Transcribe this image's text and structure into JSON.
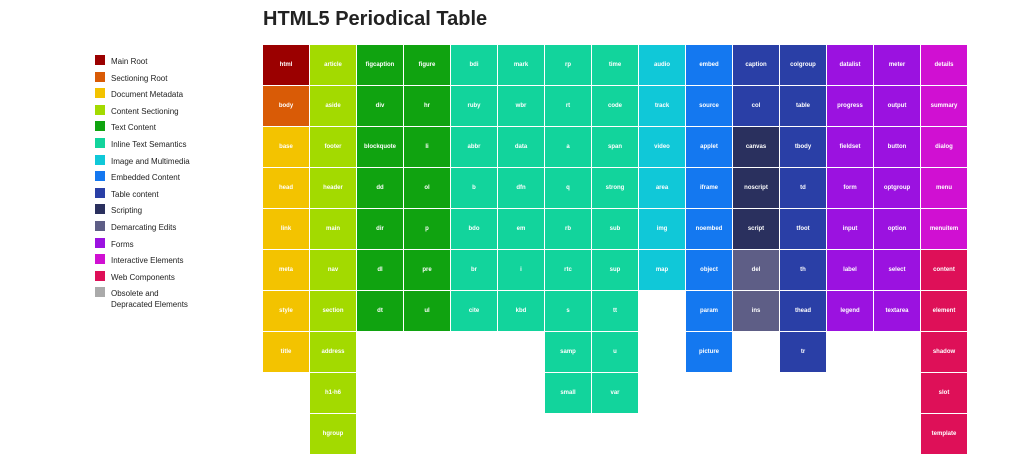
{
  "title": "HTML5 Periodical Table",
  "legend": [
    {
      "label": "Main Root",
      "color": "#9b0000"
    },
    {
      "label": "Sectioning Root",
      "color": "#d95b06"
    },
    {
      "label": "Document Metadata",
      "color": "#f3c300"
    },
    {
      "label": "Content Sectioning",
      "color": "#a3da00"
    },
    {
      "label": "Text Content",
      "color": "#10a310"
    },
    {
      "label": "Inline Text Semantics",
      "color": "#12d49c"
    },
    {
      "label": "Image and Multimedia",
      "color": "#10c8d8"
    },
    {
      "label": "Embedded Content",
      "color": "#1478f0"
    },
    {
      "label": "Table content",
      "color": "#2a3fa6"
    },
    {
      "label": "Scripting",
      "color": "#2a305e"
    },
    {
      "label": "Demarcating Edits",
      "color": "#5e5e86"
    },
    {
      "label": "Forms",
      "color": "#9b12e0"
    },
    {
      "label": "Interactive Elements",
      "color": "#d010d2"
    },
    {
      "label": "Web Components",
      "color": "#de1058"
    },
    {
      "label": "Obsolete and Depracated Elements",
      "color": "#aaaaaa"
    }
  ],
  "columns": [
    [
      {
        "tag": "html",
        "color": "#9b0000"
      },
      {
        "tag": "body",
        "color": "#d95b06"
      },
      {
        "tag": "base",
        "color": "#f3c300"
      },
      {
        "tag": "head",
        "color": "#f3c300"
      },
      {
        "tag": "link",
        "color": "#f3c300"
      },
      {
        "tag": "meta",
        "color": "#f3c300"
      },
      {
        "tag": "style",
        "color": "#f3c300"
      },
      {
        "tag": "title",
        "color": "#f3c300"
      }
    ],
    [
      {
        "tag": "article",
        "color": "#a3da00"
      },
      {
        "tag": "aside",
        "color": "#a3da00"
      },
      {
        "tag": "footer",
        "color": "#a3da00"
      },
      {
        "tag": "header",
        "color": "#a3da00"
      },
      {
        "tag": "main",
        "color": "#a3da00"
      },
      {
        "tag": "nav",
        "color": "#a3da00"
      },
      {
        "tag": "section",
        "color": "#a3da00"
      },
      {
        "tag": "address",
        "color": "#a3da00"
      },
      {
        "tag": "h1-h6",
        "color": "#a3da00"
      },
      {
        "tag": "hgroup",
        "color": "#a3da00"
      }
    ],
    [
      {
        "tag": "figcaption",
        "color": "#10a310"
      },
      {
        "tag": "div",
        "color": "#10a310"
      },
      {
        "tag": "blockquote",
        "color": "#10a310"
      },
      {
        "tag": "dd",
        "color": "#10a310"
      },
      {
        "tag": "dir",
        "color": "#10a310"
      },
      {
        "tag": "dl",
        "color": "#10a310"
      },
      {
        "tag": "dt",
        "color": "#10a310"
      }
    ],
    [
      {
        "tag": "figure",
        "color": "#10a310"
      },
      {
        "tag": "hr",
        "color": "#10a310"
      },
      {
        "tag": "li",
        "color": "#10a310"
      },
      {
        "tag": "ol",
        "color": "#10a310"
      },
      {
        "tag": "p",
        "color": "#10a310"
      },
      {
        "tag": "pre",
        "color": "#10a310"
      },
      {
        "tag": "ul",
        "color": "#10a310"
      }
    ],
    [
      {
        "tag": "bdi",
        "color": "#12d49c"
      },
      {
        "tag": "ruby",
        "color": "#12d49c"
      },
      {
        "tag": "abbr",
        "color": "#12d49c"
      },
      {
        "tag": "b",
        "color": "#12d49c"
      },
      {
        "tag": "bdo",
        "color": "#12d49c"
      },
      {
        "tag": "br",
        "color": "#12d49c"
      },
      {
        "tag": "cite",
        "color": "#12d49c"
      }
    ],
    [
      {
        "tag": "mark",
        "color": "#12d49c"
      },
      {
        "tag": "wbr",
        "color": "#12d49c"
      },
      {
        "tag": "data",
        "color": "#12d49c"
      },
      {
        "tag": "dfn",
        "color": "#12d49c"
      },
      {
        "tag": "em",
        "color": "#12d49c"
      },
      {
        "tag": "i",
        "color": "#12d49c"
      },
      {
        "tag": "kbd",
        "color": "#12d49c"
      }
    ],
    [
      {
        "tag": "rp",
        "color": "#12d49c"
      },
      {
        "tag": "rt",
        "color": "#12d49c"
      },
      {
        "tag": "a",
        "color": "#12d49c"
      },
      {
        "tag": "q",
        "color": "#12d49c"
      },
      {
        "tag": "rb",
        "color": "#12d49c"
      },
      {
        "tag": "rtc",
        "color": "#12d49c"
      },
      {
        "tag": "s",
        "color": "#12d49c"
      },
      {
        "tag": "samp",
        "color": "#12d49c"
      },
      {
        "tag": "small",
        "color": "#12d49c"
      }
    ],
    [
      {
        "tag": "time",
        "color": "#12d49c"
      },
      {
        "tag": "code",
        "color": "#12d49c"
      },
      {
        "tag": "span",
        "color": "#12d49c"
      },
      {
        "tag": "strong",
        "color": "#12d49c"
      },
      {
        "tag": "sub",
        "color": "#12d49c"
      },
      {
        "tag": "sup",
        "color": "#12d49c"
      },
      {
        "tag": "tt",
        "color": "#12d49c"
      },
      {
        "tag": "u",
        "color": "#12d49c"
      },
      {
        "tag": "var",
        "color": "#12d49c"
      }
    ],
    [
      {
        "tag": "audio",
        "color": "#10c8d8"
      },
      {
        "tag": "track",
        "color": "#10c8d8"
      },
      {
        "tag": "video",
        "color": "#10c8d8"
      },
      {
        "tag": "area",
        "color": "#10c8d8"
      },
      {
        "tag": "img",
        "color": "#10c8d8"
      },
      {
        "tag": "map",
        "color": "#10c8d8"
      }
    ],
    [
      {
        "tag": "embed",
        "color": "#1478f0"
      },
      {
        "tag": "source",
        "color": "#1478f0"
      },
      {
        "tag": "applet",
        "color": "#1478f0"
      },
      {
        "tag": "iframe",
        "color": "#1478f0"
      },
      {
        "tag": "noembed",
        "color": "#1478f0"
      },
      {
        "tag": "object",
        "color": "#1478f0"
      },
      {
        "tag": "param",
        "color": "#1478f0"
      },
      {
        "tag": "picture",
        "color": "#1478f0"
      }
    ],
    [
      {
        "tag": "caption",
        "color": "#2a3fa6"
      },
      {
        "tag": "col",
        "color": "#2a3fa6"
      },
      {
        "tag": "canvas",
        "color": "#2a305e"
      },
      {
        "tag": "noscript",
        "color": "#2a305e"
      },
      {
        "tag": "script",
        "color": "#2a305e"
      },
      {
        "tag": "del",
        "color": "#5e5e86"
      },
      {
        "tag": "ins",
        "color": "#5e5e86"
      }
    ],
    [
      {
        "tag": "colgroup",
        "color": "#2a3fa6"
      },
      {
        "tag": "table",
        "color": "#2a3fa6"
      },
      {
        "tag": "tbody",
        "color": "#2a3fa6"
      },
      {
        "tag": "td",
        "color": "#2a3fa6"
      },
      {
        "tag": "tfoot",
        "color": "#2a3fa6"
      },
      {
        "tag": "th",
        "color": "#2a3fa6"
      },
      {
        "tag": "thead",
        "color": "#2a3fa6"
      },
      {
        "tag": "tr",
        "color": "#2a3fa6"
      }
    ],
    [
      {
        "tag": "datalist",
        "color": "#9b12e0"
      },
      {
        "tag": "progress",
        "color": "#9b12e0"
      },
      {
        "tag": "fieldset",
        "color": "#9b12e0"
      },
      {
        "tag": "form",
        "color": "#9b12e0"
      },
      {
        "tag": "input",
        "color": "#9b12e0"
      },
      {
        "tag": "label",
        "color": "#9b12e0"
      },
      {
        "tag": "legend",
        "color": "#9b12e0"
      }
    ],
    [
      {
        "tag": "meter",
        "color": "#9b12e0"
      },
      {
        "tag": "output",
        "color": "#9b12e0"
      },
      {
        "tag": "button",
        "color": "#9b12e0"
      },
      {
        "tag": "optgroup",
        "color": "#9b12e0"
      },
      {
        "tag": "option",
        "color": "#9b12e0"
      },
      {
        "tag": "select",
        "color": "#9b12e0"
      },
      {
        "tag": "textarea",
        "color": "#9b12e0"
      }
    ],
    [
      {
        "tag": "details",
        "color": "#d010d2"
      },
      {
        "tag": "summary",
        "color": "#d010d2"
      },
      {
        "tag": "dialog",
        "color": "#d010d2"
      },
      {
        "tag": "menu",
        "color": "#d010d2"
      },
      {
        "tag": "menuitem",
        "color": "#d010d2"
      },
      {
        "tag": "content",
        "color": "#de1058"
      },
      {
        "tag": "element",
        "color": "#de1058"
      },
      {
        "tag": "shadow",
        "color": "#de1058"
      },
      {
        "tag": "slot",
        "color": "#de1058"
      },
      {
        "tag": "template",
        "color": "#de1058"
      }
    ]
  ]
}
